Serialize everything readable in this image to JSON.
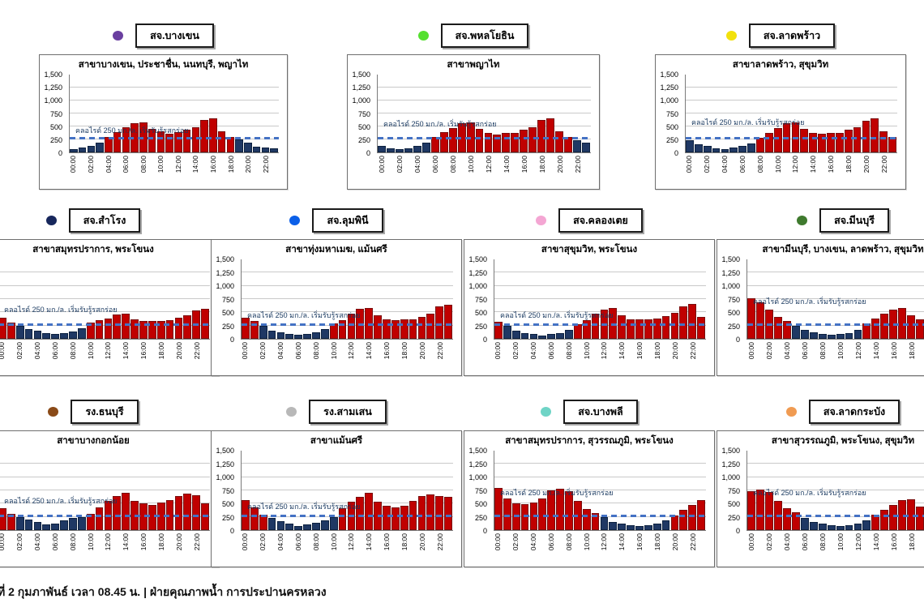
{
  "caption": {
    "text": "ที่ 2 กุมภาพันธ์ เวลา 08.45 น. | ฝ่ายคุณภาพน้ำ การประปานครหลวง"
  },
  "chart_common": {
    "type": "bar",
    "x": [
      "00:00",
      "01:00",
      "02:00",
      "03:00",
      "04:00",
      "05:00",
      "06:00",
      "07:00",
      "08:00",
      "09:00",
      "10:00",
      "11:00",
      "12:00",
      "13:00",
      "14:00",
      "15:00",
      "16:00",
      "17:00",
      "18:00",
      "19:00",
      "20:00",
      "21:00",
      "22:00",
      "23:00"
    ],
    "x_tick_labels": [
      "00:00",
      "02:00",
      "04:00",
      "06:00",
      "08:00",
      "10:00",
      "12:00",
      "14:00",
      "16:00",
      "18:00",
      "20:00",
      "22:00"
    ],
    "ylim": [
      0,
      1500
    ],
    "y_ticks": [
      0,
      250,
      500,
      750,
      1000,
      1250,
      1500
    ],
    "grid": true,
    "threshold": {
      "value": 250,
      "label": "คลอไรด์ 250 มก./ล. เริ่มรับรู้รสกร่อย",
      "line_color": "#4472C4"
    },
    "bar_colors": {
      "above_threshold": "#C00000",
      "below_threshold": "#1F3864"
    },
    "legend_position": "above"
  },
  "chart_data": [
    {
      "station_key": "bangkhen",
      "station": "สจ.บางเขน",
      "marker_color": "#6A3FA0",
      "title": "สาขาบางเขน, ประชาชื่น, นนทบุรี, พญาไท",
      "annotation_y": 320,
      "values": [
        60,
        90,
        130,
        180,
        290,
        390,
        480,
        555,
        580,
        450,
        400,
        360,
        390,
        430,
        490,
        620,
        650,
        410,
        290,
        245,
        190,
        115,
        90,
        75
      ]
    },
    {
      "station_key": "phahonyothin",
      "station": "สจ.พหลโยธิน",
      "marker_color": "#55E030",
      "title": "สาขาพญาไท",
      "annotation_y": 440,
      "values": [
        120,
        85,
        70,
        85,
        125,
        180,
        290,
        390,
        470,
        555,
        575,
        450,
        370,
        350,
        370,
        380,
        440,
        480,
        620,
        655,
        410,
        290,
        240,
        195
      ]
    },
    {
      "station_key": "latphrao",
      "station": "สจ.ลาดพร้าว",
      "marker_color": "#F2E10C",
      "title": "สาขาลาดพร้าว, สุขุมวิท",
      "annotation_y": 470,
      "values": [
        240,
        155,
        120,
        85,
        65,
        90,
        125,
        170,
        280,
        380,
        470,
        555,
        580,
        450,
        370,
        355,
        375,
        375,
        430,
        490,
        610,
        655,
        410,
        290
      ]
    },
    {
      "station_key": "samrong",
      "station": "สจ.สำโรง",
      "marker_color": "#17275C",
      "title": "สาขาสมุทรปราการ, พระโขนง",
      "annotation_y": 440,
      "values": [
        400,
        300,
        250,
        180,
        150,
        100,
        90,
        110,
        140,
        200,
        300,
        350,
        390,
        460,
        480,
        370,
        330,
        330,
        340,
        350,
        400,
        450,
        530,
        560
      ]
    },
    {
      "station_key": "lumphini",
      "station": "สจ.ลุมพินี",
      "marker_color": "#0B5FE8",
      "title": "สาขาทุ่งมหาเมฆ, แม้นศรี",
      "annotation_y": 330,
      "values": [
        400,
        330,
        240,
        160,
        120,
        90,
        70,
        90,
        120,
        180,
        290,
        350,
        480,
        560,
        580,
        440,
        360,
        350,
        370,
        370,
        420,
        480,
        620,
        650
      ]
    },
    {
      "station_key": "khlongtoei",
      "station": "สจ.คลองเตย",
      "marker_color": "#F4A6D3",
      "title": "สาขาสุขุมวิท, พระโขนง",
      "annotation_y": 330,
      "values": [
        320,
        240,
        160,
        115,
        85,
        65,
        85,
        115,
        175,
        280,
        350,
        470,
        555,
        585,
        450,
        370,
        360,
        370,
        380,
        430,
        485,
        610,
        655,
        410
      ]
    },
    {
      "station_key": "minburi",
      "station": "สจ.มีนบุรี",
      "marker_color": "#3F7A2E",
      "title": "สาขามีนบุรี, บางเขน, ลาดพร้าว, สุขุมวิท",
      "annotation_y": 600,
      "values": [
        770,
        690,
        550,
        410,
        330,
        240,
        165,
        120,
        85,
        70,
        90,
        115,
        175,
        290,
        390,
        480,
        555,
        580,
        445,
        370,
        360,
        370,
        380,
        430
      ]
    },
    {
      "station_key": "thonburi",
      "station": "รง.ธนบุรี",
      "marker_color": "#8A4A18",
      "title": "สาขาบางกอกน้อย",
      "annotation_y": 440,
      "values": [
        420,
        300,
        250,
        200,
        160,
        110,
        130,
        180,
        230,
        250,
        300,
        430,
        550,
        640,
        700,
        550,
        500,
        480,
        520,
        570,
        650,
        690,
        660,
        500
      ]
    },
    {
      "station_key": "samsen",
      "station": "รง.สามเสน",
      "marker_color": "#B8B8B8",
      "title": "สาขาแม้นศรี",
      "annotation_y": 330,
      "values": [
        570,
        430,
        290,
        230,
        170,
        125,
        80,
        100,
        145,
        190,
        240,
        410,
        530,
        630,
        710,
        530,
        460,
        430,
        460,
        545,
        650,
        680,
        640,
        630
      ]
    },
    {
      "station_key": "bangphli",
      "station": "สจ.บางพลี",
      "marker_color": "#6FD4C6",
      "title": "สาขาสมุทรปราการ, สุวรรณภูมิ, พระโขนง",
      "annotation_y": 590,
      "values": [
        800,
        590,
        510,
        490,
        520,
        600,
        750,
        775,
        740,
        545,
        395,
        320,
        240,
        160,
        125,
        90,
        70,
        90,
        130,
        185,
        280,
        380,
        470,
        560
      ]
    },
    {
      "station_key": "latkrabang",
      "station": "สจ.ลาดกระบัง",
      "marker_color": "#F09B52",
      "title": "สาขาสุวรรณภูมิ, พระโขนง, สุขุมวิท",
      "annotation_y": 590,
      "values": [
        730,
        760,
        720,
        550,
        410,
        330,
        230,
        150,
        125,
        90,
        70,
        90,
        130,
        180,
        290,
        390,
        480,
        560,
        585,
        450,
        370,
        360,
        370,
        420
      ]
    }
  ]
}
